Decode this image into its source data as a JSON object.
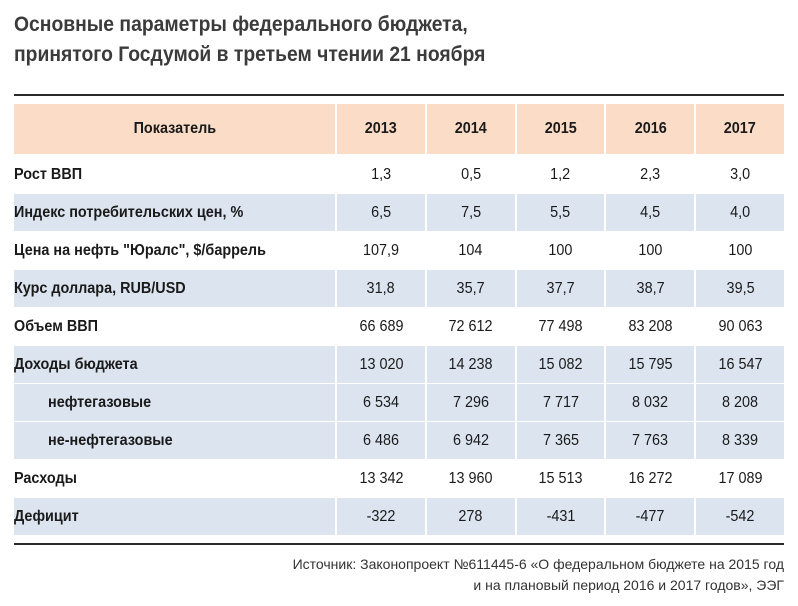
{
  "title": {
    "line1": "Основные параметры федерального бюджета,",
    "line2": "принятого Госдумой в третьем чтении 21 ноября"
  },
  "table": {
    "header": {
      "label": "Показатель",
      "years": [
        "2013",
        "2014",
        "2015",
        "2016",
        "2017"
      ]
    },
    "rows": [
      {
        "label": "Рост ВВП",
        "values": [
          "1,3",
          "0,5",
          "1,2",
          "2,3",
          "3,0"
        ]
      },
      {
        "label": "Индекс потребительских цен, %",
        "values": [
          "6,5",
          "7,5",
          "5,5",
          "4,5",
          "4,0"
        ]
      },
      {
        "label": "Цена на нефть \"Юралс\", $/баррель",
        "values": [
          "107,9",
          "104",
          "100",
          "100",
          "100"
        ]
      },
      {
        "label": "Курс доллара, RUB/USD",
        "values": [
          "31,8",
          "35,7",
          "37,7",
          "38,7",
          "39,5"
        ]
      },
      {
        "label": "Объем ВВП",
        "values": [
          "66 689",
          "72 612",
          "77 498",
          "83 208",
          "90 063"
        ]
      },
      {
        "label": "Доходы бюджета",
        "values": [
          "13 020",
          "14 238",
          "15 082",
          "15 795",
          "16 547"
        ]
      },
      {
        "label": "нефтегазовые",
        "values": [
          "6 534",
          "7 296",
          "7 717",
          "8 032",
          "8 208"
        ]
      },
      {
        "label": "не-нефтегазовые",
        "values": [
          "6 486",
          "6 942",
          "7 365",
          "7 763",
          "8 339"
        ]
      },
      {
        "label": "Расходы",
        "values": [
          "13 342",
          "13 960",
          "15 513",
          "16 272",
          "17 089"
        ]
      },
      {
        "label": "Дефицит",
        "values": [
          "-322",
          "278",
          "-431",
          "-477",
          "-542"
        ]
      }
    ]
  },
  "source": {
    "line1": "Источник:  Законопроект №611445-6 «О федеральном бюджете на 2015 год",
    "line2": "и на плановый период 2016 и 2017 годов», ЭЭГ"
  },
  "colors": {
    "header_bg": "#fadcc7",
    "shade_bg": "#dbe4ef"
  }
}
